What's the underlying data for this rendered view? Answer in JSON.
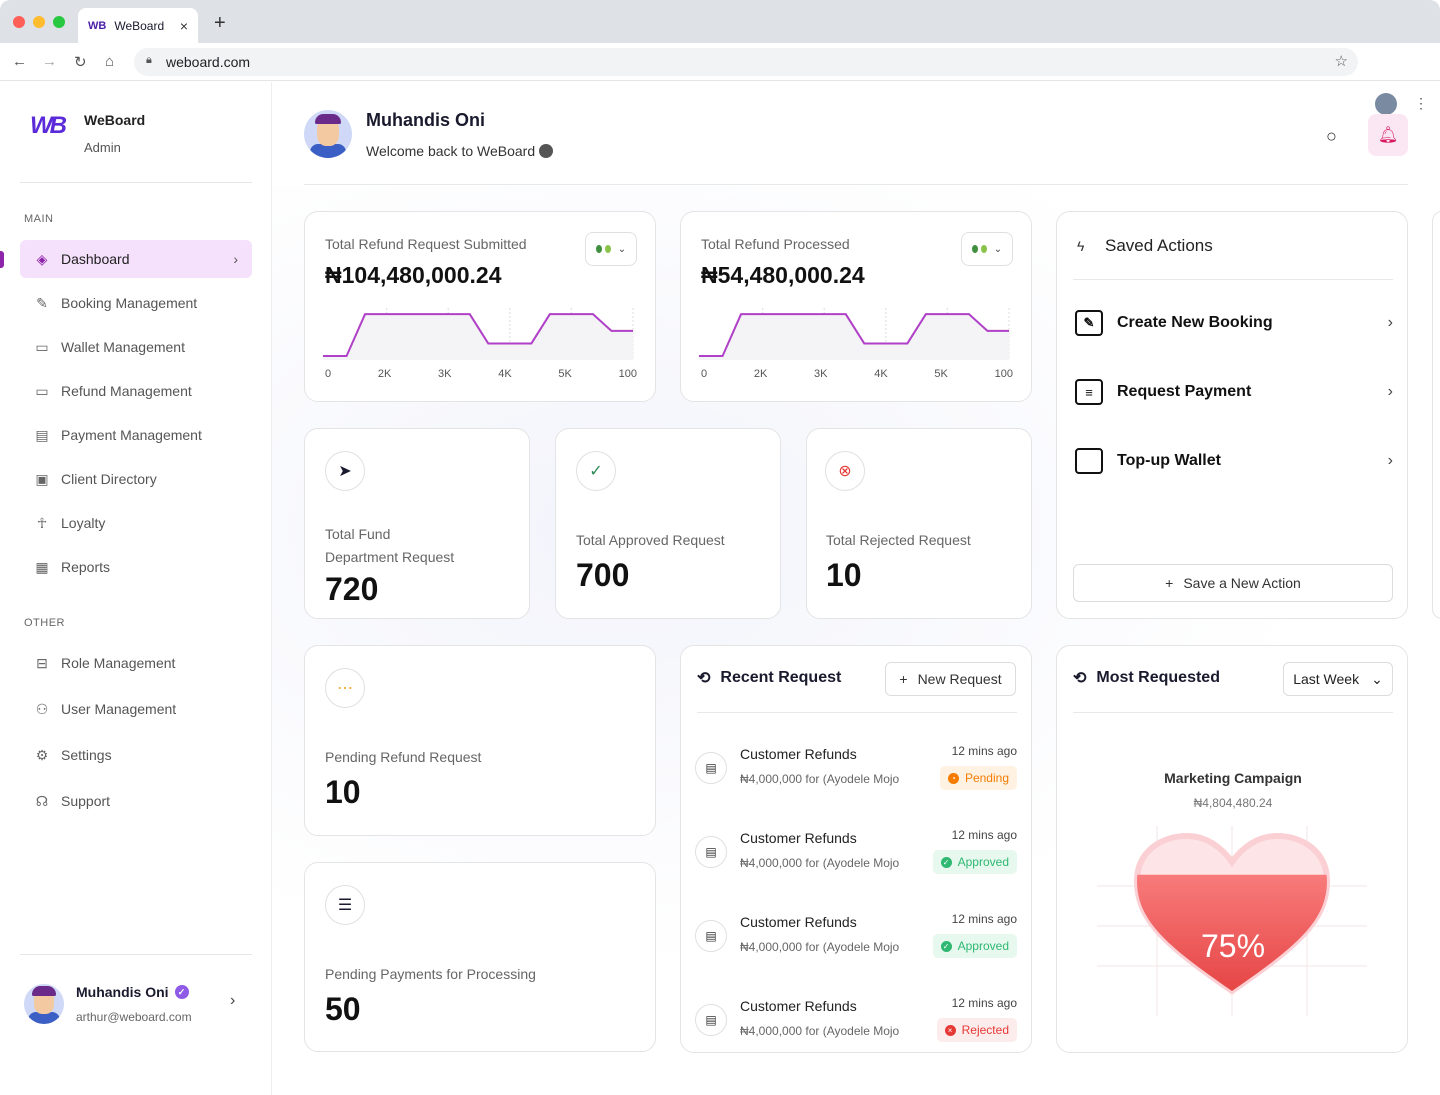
{
  "browser": {
    "tab_title": "WeBoard",
    "tab_logo": "WB",
    "url": "weboard.com",
    "new_tab": "+",
    "close": "×"
  },
  "brand": {
    "logo": "WB",
    "name": "WeBoard",
    "role": "Admin"
  },
  "sidebar": {
    "main_label": "MAIN",
    "other_label": "OTHER",
    "main_items": [
      {
        "label": "Dashboard",
        "icon": "dashboard-icon"
      },
      {
        "label": "Booking Management",
        "icon": "edit-icon"
      },
      {
        "label": "Wallet Management",
        "icon": "wallet-icon"
      },
      {
        "label": "Refund Management",
        "icon": "wallet-icon"
      },
      {
        "label": "Payment Management",
        "icon": "card-icon"
      },
      {
        "label": "Client Directory",
        "icon": "id-badge-icon"
      },
      {
        "label": "Loyalty",
        "icon": "person-star-icon"
      },
      {
        "label": "Reports",
        "icon": "report-icon"
      }
    ],
    "other_items": [
      {
        "label": "Role Management",
        "icon": "role-icon"
      },
      {
        "label": "User Management",
        "icon": "users-icon"
      },
      {
        "label": "Settings",
        "icon": "gear-icon"
      },
      {
        "label": "Support",
        "icon": "headset-icon"
      }
    ],
    "user": {
      "name": "Muhandis Oni",
      "email": "arthur@weboard.com"
    }
  },
  "header": {
    "name": "Muhandis Oni",
    "welcome": "Welcome back to WeBoard"
  },
  "stats": {
    "refund_submitted": {
      "label": "Total Refund Request Submitted",
      "value": "₦104,480,000.24"
    },
    "refund_processed": {
      "label": "Total Refund Processed",
      "value": "₦54,480,000.24"
    },
    "ticks": [
      "0",
      "2K",
      "3K",
      "4K",
      "5K",
      "100"
    ],
    "fund_dept": {
      "label_line1": "Total Fund",
      "label_line2": "Department Request",
      "value": "720"
    },
    "approved": {
      "label": "Total Approved Request",
      "value": "700"
    },
    "rejected": {
      "label": "Total Rejected Request",
      "value": "10"
    },
    "pending_refund": {
      "label": "Pending Refund Request",
      "value": "10"
    },
    "pending_payments": {
      "label": "Pending Payments for Processing",
      "value": "50"
    }
  },
  "chart_data": [
    {
      "type": "line",
      "x": [
        "0",
        "2K",
        "3K",
        "4K",
        "5K",
        "100"
      ],
      "values": [
        0,
        2,
        2,
        0.6,
        2,
        1.2
      ]
    },
    {
      "type": "line",
      "x": [
        "0",
        "2K",
        "3K",
        "4K",
        "5K",
        "100"
      ],
      "values": [
        0,
        2,
        2,
        0.6,
        2,
        1.2
      ]
    }
  ],
  "saved_actions": {
    "title": "Saved Actions",
    "items": [
      {
        "label": "Create New Booking",
        "icon": "edit-icon"
      },
      {
        "label": "Request Payment",
        "icon": "receipt-icon"
      },
      {
        "label": "Top-up Wallet",
        "icon": "wallet-icon"
      }
    ],
    "save_btn": "Save a New Action"
  },
  "recent": {
    "title": "Recent Request",
    "new_btn": "New Request",
    "rows": [
      {
        "title": "Customer Refunds",
        "sub": "₦4,000,000 for (Ayodele Mojo",
        "time": "12 mins ago",
        "status": "Pending"
      },
      {
        "title": "Customer Refunds",
        "sub": "₦4,000,000 for (Ayodele Mojo",
        "time": "12 mins ago",
        "status": "Approved"
      },
      {
        "title": "Customer Refunds",
        "sub": "₦4,000,000 for (Ayodele Mojo",
        "time": "12 mins ago",
        "status": "Approved"
      },
      {
        "title": "Customer Refunds",
        "sub": "₦4,000,000 for (Ayodele Mojo",
        "time": "12 mins ago",
        "status": "Rejected"
      }
    ]
  },
  "most_requested": {
    "title": "Most Requested",
    "period": "Last Week",
    "item": "Marketing Campaign",
    "amount": "₦4,804,480.24",
    "percent": "75%",
    "fill": 0.75
  },
  "colors": {
    "accent": "#8e24aa",
    "brand": "#5b2bd9",
    "pending": "#f57c00",
    "approved": "#2eb872",
    "rejected": "#e53935"
  }
}
